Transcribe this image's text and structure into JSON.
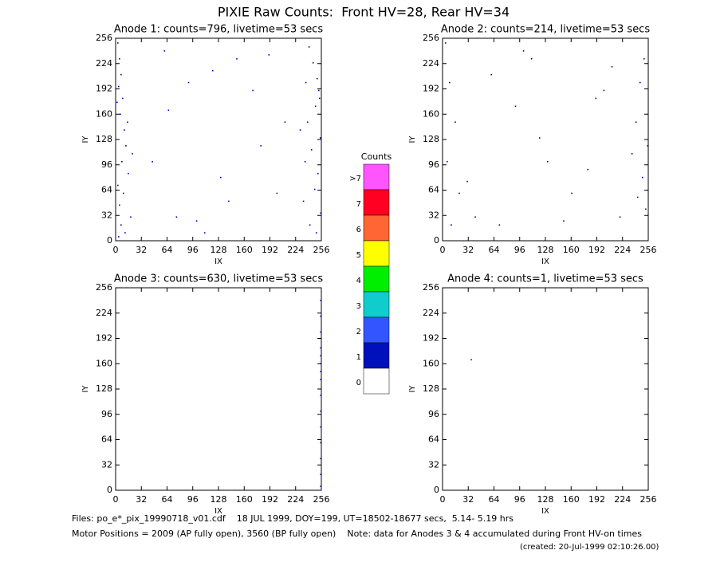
{
  "title": "PIXIE Raw Counts:  Front HV=28, Rear HV=34",
  "chart_data": [
    {
      "type": "scatter",
      "title": "Anode 1: counts=796, livetime=53 secs",
      "x_label": "IX",
      "y_label": "IY",
      "xlim": [
        0,
        256
      ],
      "ylim": [
        0,
        256
      ],
      "xticks": [
        0,
        32,
        64,
        96,
        128,
        160,
        192,
        224,
        256
      ],
      "yticks": [
        0,
        32,
        64,
        96,
        128,
        160,
        192,
        224,
        256
      ],
      "color": "#0000cc",
      "x": [
        2,
        4,
        6,
        3,
        8,
        5,
        10,
        12,
        7,
        15,
        2,
        9,
        4,
        18,
        6,
        11,
        3,
        14,
        1,
        20,
        240,
        245,
        250,
        252,
        248,
        238,
        254,
        243,
        235,
        251,
        247,
        233,
        255,
        241,
        249,
        229,
        253,
        236,
        60,
        90,
        120,
        150,
        180,
        200,
        45,
        75,
        110,
        170,
        210,
        130,
        100,
        65,
        190,
        140
      ],
      "y": [
        250,
        230,
        210,
        195,
        180,
        160,
        140,
        120,
        100,
        85,
        70,
        60,
        45,
        30,
        20,
        10,
        5,
        150,
        175,
        110,
        245,
        225,
        205,
        190,
        170,
        150,
        130,
        115,
        100,
        85,
        65,
        50,
        35,
        20,
        10,
        140,
        180,
        200,
        240,
        200,
        215,
        230,
        120,
        60,
        100,
        30,
        10,
        190,
        150,
        80,
        25,
        165,
        235,
        50
      ]
    },
    {
      "type": "scatter",
      "title": "Anode 2: counts=214, livetime=53 secs",
      "x_label": "IX",
      "y_label": "IY",
      "xlim": [
        0,
        256
      ],
      "ylim": [
        0,
        256
      ],
      "xticks": [
        0,
        32,
        64,
        96,
        128,
        160,
        192,
        224,
        256
      ],
      "yticks": [
        0,
        32,
        64,
        96,
        128,
        160,
        192,
        224,
        256
      ],
      "color": "#0000cc",
      "x": [
        3,
        8,
        15,
        5,
        20,
        40,
        70,
        100,
        130,
        160,
        190,
        220,
        240,
        248,
        252,
        245,
        250,
        235,
        60,
        90,
        120,
        180,
        210,
        30,
        150,
        200,
        242,
        255,
        10,
        110
      ],
      "y": [
        250,
        200,
        150,
        100,
        60,
        30,
        20,
        240,
        100,
        60,
        180,
        30,
        150,
        80,
        40,
        200,
        230,
        110,
        210,
        170,
        130,
        90,
        220,
        75,
        25,
        190,
        55,
        120,
        20,
        230
      ]
    },
    {
      "type": "scatter",
      "title": "Anode 3: counts=630, livetime=53 secs",
      "x_label": "IX",
      "y_label": "IY",
      "xlim": [
        0,
        256
      ],
      "ylim": [
        0,
        256
      ],
      "xticks": [
        0,
        32,
        64,
        96,
        128,
        160,
        192,
        224,
        256
      ],
      "yticks": [
        0,
        32,
        64,
        96,
        128,
        160,
        192,
        224,
        256
      ],
      "color": "#0000cc",
      "x": [
        255,
        255,
        255,
        255,
        255,
        255,
        255,
        255,
        255,
        255,
        255,
        255,
        255,
        255,
        255
      ],
      "y": [
        5,
        20,
        40,
        60,
        80,
        100,
        120,
        140,
        150,
        160,
        170,
        180,
        200,
        220,
        240
      ]
    },
    {
      "type": "scatter",
      "title": "Anode 4: counts=1, livetime=53 secs",
      "x_label": "IX",
      "y_label": "IY",
      "xlim": [
        0,
        256
      ],
      "ylim": [
        0,
        256
      ],
      "xticks": [
        0,
        32,
        64,
        96,
        128,
        160,
        192,
        224,
        256
      ],
      "yticks": [
        0,
        32,
        64,
        96,
        128,
        160,
        192,
        224,
        256
      ],
      "color": "#0000cc",
      "x": [
        35
      ],
      "y": [
        165
      ]
    }
  ],
  "colorbar": {
    "title": "Counts",
    "labels": [
      ">7",
      "7",
      "6",
      "5",
      "4",
      "3",
      "2",
      "1",
      "0"
    ],
    "colors": [
      "#ff55ff",
      "#ff0022",
      "#ff6633",
      "#ffff00",
      "#00ee00",
      "#11cccc",
      "#3355ff",
      "#0011bb",
      "#ffffff"
    ]
  },
  "footer": [
    "Files: po_e*_pix_19990718_v01.cdf    18 JUL 1999, DOY=199, UT=18502-18677 secs,  5.14- 5.19 hrs",
    "Motor Positions = 2009 (AP fully open), 3560 (BP fully open)    Note: data for Anodes 3 & 4 accumulated during Front HV-on times",
    "(created: 20-Jul-1999 02:10:26.00)"
  ]
}
